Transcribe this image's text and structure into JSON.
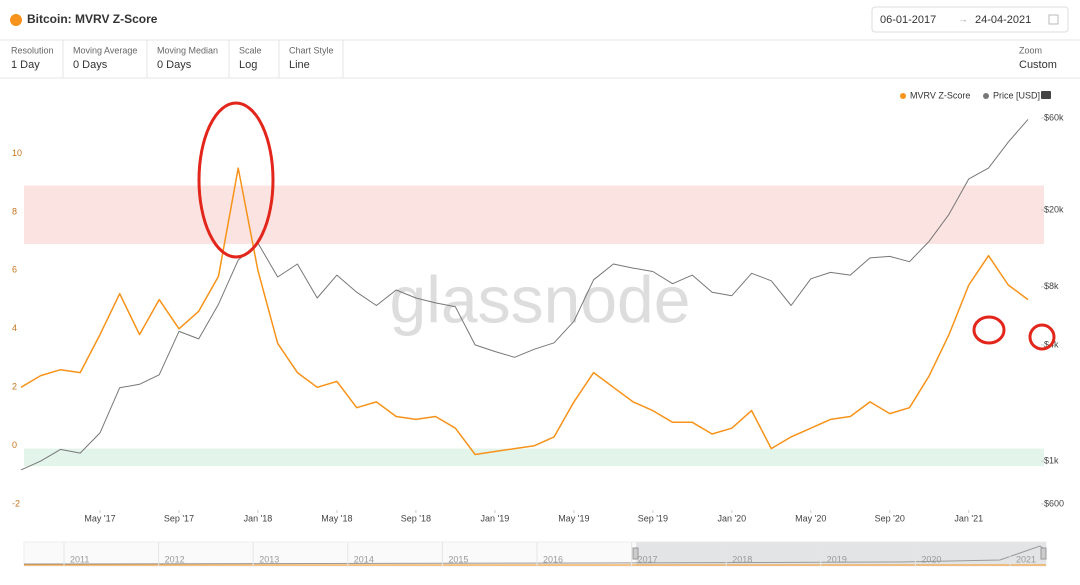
{
  "header": {
    "title": "Bitcoin: MVRV Z-Score",
    "date_from": "06-01-2017",
    "date_to": "24-04-2021"
  },
  "controls": [
    {
      "label": "Resolution",
      "value": "1 Day"
    },
    {
      "label": "Moving Average",
      "value": "0 Days"
    },
    {
      "label": "Moving Median",
      "value": "0 Days"
    },
    {
      "label": "Scale",
      "value": "Log"
    },
    {
      "label": "Chart Style",
      "value": "Line"
    }
  ],
  "zoom": {
    "label": "Zoom",
    "value": "Custom"
  },
  "watermark": "glassnode",
  "navigator": {
    "years": [
      "2011",
      "2012",
      "2013",
      "2014",
      "2015",
      "2016",
      "2017",
      "2018",
      "2019",
      "2020",
      "2021"
    ]
  },
  "chart_data": {
    "type": "line",
    "x": [
      "2017-01",
      "2017-02",
      "2017-03",
      "2017-04",
      "2017-05",
      "2017-06",
      "2017-07",
      "2017-08",
      "2017-09",
      "2017-10",
      "2017-11",
      "2017-12",
      "2018-01",
      "2018-02",
      "2018-03",
      "2018-04",
      "2018-05",
      "2018-06",
      "2018-07",
      "2018-08",
      "2018-09",
      "2018-10",
      "2018-11",
      "2018-12",
      "2019-01",
      "2019-02",
      "2019-03",
      "2019-04",
      "2019-05",
      "2019-06",
      "2019-07",
      "2019-08",
      "2019-09",
      "2019-10",
      "2019-11",
      "2019-12",
      "2020-01",
      "2020-02",
      "2020-03",
      "2020-04",
      "2020-05",
      "2020-06",
      "2020-07",
      "2020-08",
      "2020-09",
      "2020-10",
      "2020-11",
      "2020-12",
      "2021-01",
      "2021-02",
      "2021-03",
      "2021-04"
    ],
    "series": [
      {
        "name": "MVRV Z-Score",
        "color": "#f7931a",
        "values": [
          2.0,
          2.4,
          2.6,
          2.5,
          3.8,
          5.2,
          3.8,
          5.0,
          4.0,
          4.6,
          5.8,
          9.5,
          6.0,
          3.5,
          2.5,
          2.0,
          2.2,
          1.3,
          1.5,
          1.0,
          0.9,
          1.0,
          0.6,
          -0.3,
          -0.2,
          -0.1,
          0.0,
          0.3,
          1.5,
          2.5,
          2.0,
          1.5,
          1.2,
          0.8,
          0.8,
          0.4,
          0.6,
          1.2,
          -0.1,
          0.3,
          0.6,
          0.9,
          1.0,
          1.5,
          1.1,
          1.3,
          2.4,
          3.8,
          5.5,
          6.5,
          5.5,
          5.0
        ]
      },
      {
        "name": "Price [USD]",
        "color": "#777777",
        "axis": "y2",
        "values": [
          900,
          1000,
          1150,
          1100,
          1400,
          2400,
          2500,
          2800,
          4700,
          4300,
          6500,
          11000,
          13500,
          9000,
          10500,
          7000,
          9200,
          7500,
          6400,
          7700,
          7000,
          6600,
          6300,
          4000,
          3700,
          3450,
          3800,
          4100,
          5300,
          8700,
          10500,
          10000,
          9600,
          8300,
          9200,
          7500,
          7200,
          9400,
          8600,
          6400,
          8800,
          9500,
          9200,
          11300,
          11500,
          10800,
          13800,
          19000,
          29000,
          33000,
          45000,
          59000
        ]
      }
    ],
    "xlim": [
      "2017-01",
      "2021-04"
    ],
    "xticks": [
      {
        "value": "2017-05",
        "label": "May '17"
      },
      {
        "value": "2017-09",
        "label": "Sep '17"
      },
      {
        "value": "2018-01",
        "label": "Jan '18"
      },
      {
        "value": "2018-05",
        "label": "May '18"
      },
      {
        "value": "2018-09",
        "label": "Sep '18"
      },
      {
        "value": "2019-01",
        "label": "Jan '19"
      },
      {
        "value": "2019-05",
        "label": "May '19"
      },
      {
        "value": "2019-09",
        "label": "Sep '19"
      },
      {
        "value": "2020-01",
        "label": "Jan '20"
      },
      {
        "value": "2020-05",
        "label": "May '20"
      },
      {
        "value": "2020-09",
        "label": "Sep '20"
      },
      {
        "value": "2021-01",
        "label": "Jan '21"
      }
    ],
    "ylim": [
      -2.2,
      12
    ],
    "yticks": [
      -2,
      0,
      2,
      4,
      6,
      8,
      10
    ],
    "y2lim": [
      558,
      78900
    ],
    "y2log": true,
    "y2ticks": [
      {
        "value": 600,
        "label": "$600"
      },
      {
        "value": 1000,
        "label": "$1k"
      },
      {
        "value": 4000,
        "label": "$4k"
      },
      {
        "value": 8000,
        "label": "$8k"
      },
      {
        "value": 20000,
        "label": "$20k"
      },
      {
        "value": 60000,
        "label": "$60k"
      }
    ],
    "bands": [
      {
        "range": [
          6.9,
          8.9
        ],
        "color": "#fbe3e1"
      },
      {
        "range": [
          -0.7,
          -0.1
        ],
        "color": "#e3f5ea"
      }
    ],
    "grid": false,
    "legend": "top-right"
  }
}
